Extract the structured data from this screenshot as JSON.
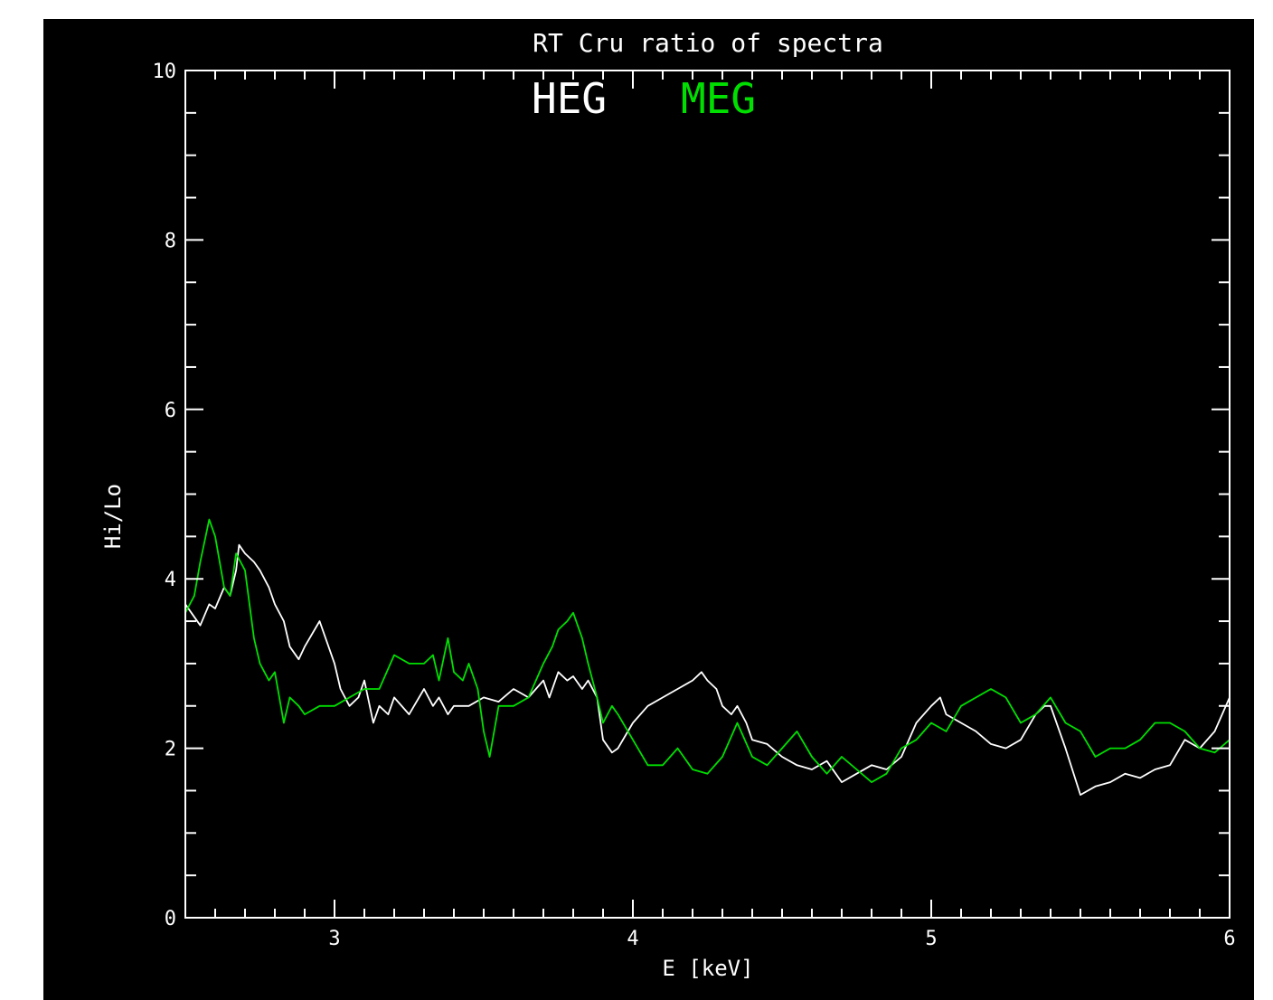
{
  "chart_data": {
    "type": "line",
    "title": "RT Cru ratio of spectra",
    "xlabel": "E [keV]",
    "ylabel": "Hi/Lo",
    "xlim": [
      2.5,
      6
    ],
    "ylim": [
      0,
      10
    ],
    "x_ticks": [
      "3",
      "4",
      "5",
      "6"
    ],
    "y_ticks": [
      "0",
      "2",
      "4",
      "6",
      "8",
      "10"
    ],
    "grid": false,
    "legend_placement": "top-center",
    "colors": {
      "background": "#000000",
      "axes": "#ffffff",
      "heg": "#ffffff",
      "meg": "#00e000"
    },
    "series": [
      {
        "name": "HEG",
        "color": "#ffffff",
        "x": [
          2.5,
          2.55,
          2.58,
          2.6,
          2.63,
          2.65,
          2.67,
          2.68,
          2.7,
          2.73,
          2.75,
          2.78,
          2.8,
          2.83,
          2.85,
          2.88,
          2.9,
          2.95,
          3.0,
          3.02,
          3.05,
          3.08,
          3.1,
          3.13,
          3.15,
          3.18,
          3.2,
          3.25,
          3.3,
          3.33,
          3.35,
          3.38,
          3.4,
          3.45,
          3.5,
          3.55,
          3.6,
          3.65,
          3.7,
          3.72,
          3.75,
          3.78,
          3.8,
          3.83,
          3.85,
          3.88,
          3.9,
          3.93,
          3.95,
          4.0,
          4.05,
          4.1,
          4.15,
          4.2,
          4.23,
          4.25,
          4.28,
          4.3,
          4.33,
          4.35,
          4.38,
          4.4,
          4.45,
          4.5,
          4.55,
          4.6,
          4.65,
          4.7,
          4.75,
          4.8,
          4.85,
          4.9,
          4.95,
          5.0,
          5.03,
          5.05,
          5.1,
          5.15,
          5.2,
          5.25,
          5.3,
          5.35,
          5.38,
          5.4,
          5.43,
          5.45,
          5.5,
          5.55,
          5.6,
          5.65,
          5.7,
          5.75,
          5.8,
          5.85,
          5.9,
          5.95,
          6.0
        ],
        "values": [
          3.7,
          3.45,
          3.7,
          3.65,
          3.9,
          3.8,
          4.1,
          4.4,
          4.3,
          4.2,
          4.1,
          3.9,
          3.7,
          3.5,
          3.2,
          3.05,
          3.2,
          3.5,
          3.0,
          2.7,
          2.5,
          2.6,
          2.8,
          2.3,
          2.5,
          2.4,
          2.6,
          2.4,
          2.7,
          2.5,
          2.6,
          2.4,
          2.5,
          2.5,
          2.6,
          2.55,
          2.7,
          2.6,
          2.8,
          2.6,
          2.9,
          2.8,
          2.85,
          2.7,
          2.8,
          2.6,
          2.1,
          1.95,
          2.0,
          2.3,
          2.5,
          2.6,
          2.7,
          2.8,
          2.9,
          2.8,
          2.7,
          2.5,
          2.4,
          2.5,
          2.3,
          2.1,
          2.05,
          1.9,
          1.8,
          1.75,
          1.85,
          1.6,
          1.7,
          1.8,
          1.75,
          1.9,
          2.3,
          2.5,
          2.6,
          2.4,
          2.3,
          2.2,
          2.05,
          2.0,
          2.1,
          2.4,
          2.5,
          2.5,
          2.2,
          2.0,
          1.45,
          1.55,
          1.6,
          1.7,
          1.65,
          1.75,
          1.8,
          2.1,
          2.0,
          2.2,
          2.6
        ]
      },
      {
        "name": "MEG",
        "color": "#00e000",
        "x": [
          2.5,
          2.53,
          2.55,
          2.58,
          2.6,
          2.63,
          2.65,
          2.67,
          2.7,
          2.73,
          2.75,
          2.78,
          2.8,
          2.83,
          2.85,
          2.88,
          2.9,
          2.95,
          3.0,
          3.05,
          3.1,
          3.15,
          3.2,
          3.25,
          3.3,
          3.33,
          3.35,
          3.38,
          3.4,
          3.43,
          3.45,
          3.48,
          3.5,
          3.52,
          3.55,
          3.6,
          3.65,
          3.7,
          3.73,
          3.75,
          3.78,
          3.8,
          3.83,
          3.85,
          3.88,
          3.9,
          3.93,
          3.95,
          4.0,
          4.05,
          4.1,
          4.15,
          4.2,
          4.25,
          4.3,
          4.35,
          4.4,
          4.45,
          4.5,
          4.55,
          4.6,
          4.65,
          4.7,
          4.75,
          4.8,
          4.85,
          4.9,
          4.95,
          5.0,
          5.05,
          5.1,
          5.15,
          5.2,
          5.25,
          5.3,
          5.35,
          5.4,
          5.45,
          5.5,
          5.55,
          5.6,
          5.65,
          5.7,
          5.75,
          5.8,
          5.85,
          5.9,
          5.95,
          6.0
        ],
        "values": [
          3.6,
          3.8,
          4.2,
          4.7,
          4.5,
          3.9,
          3.8,
          4.3,
          4.1,
          3.3,
          3.0,
          2.8,
          2.9,
          2.3,
          2.6,
          2.5,
          2.4,
          2.5,
          2.5,
          2.6,
          2.7,
          2.7,
          3.1,
          3.0,
          3.0,
          3.1,
          2.8,
          3.3,
          2.9,
          2.8,
          3.0,
          2.7,
          2.2,
          1.9,
          2.5,
          2.5,
          2.6,
          3.0,
          3.2,
          3.4,
          3.5,
          3.6,
          3.3,
          3.0,
          2.6,
          2.3,
          2.5,
          2.4,
          2.1,
          1.8,
          1.8,
          2.0,
          1.75,
          1.7,
          1.9,
          2.3,
          1.9,
          1.8,
          2.0,
          2.2,
          1.9,
          1.7,
          1.9,
          1.75,
          1.6,
          1.7,
          2.0,
          2.1,
          2.3,
          2.2,
          2.5,
          2.6,
          2.7,
          2.6,
          2.3,
          2.4,
          2.6,
          2.3,
          2.2,
          1.9,
          2.0,
          2.0,
          2.1,
          2.3,
          2.3,
          2.2,
          2.0,
          1.95,
          2.1
        ]
      }
    ]
  }
}
